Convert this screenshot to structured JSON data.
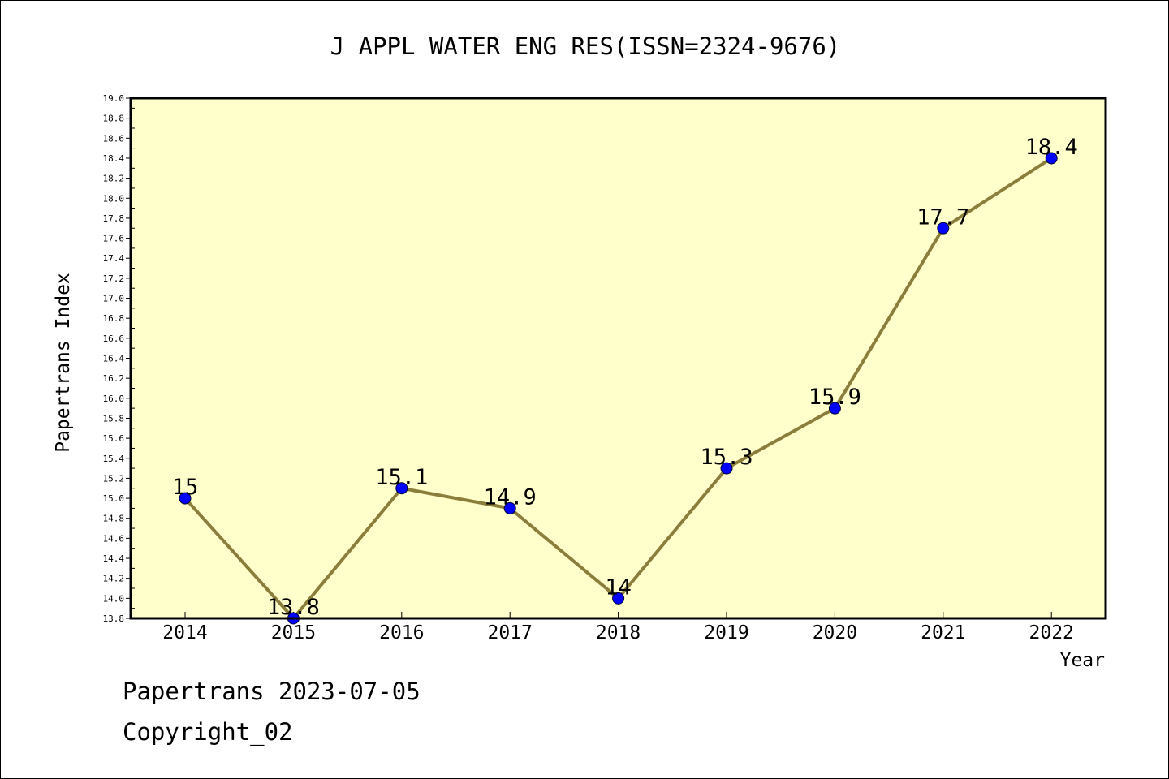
{
  "chart_data": {
    "type": "line",
    "title": "J APPL WATER ENG RES(ISSN=2324-9676)",
    "xlabel": "Year",
    "ylabel": "Papertrans Index",
    "categories": [
      "2014",
      "2015",
      "2016",
      "2017",
      "2018",
      "2019",
      "2020",
      "2021",
      "2022"
    ],
    "series": [
      {
        "values": [
          15,
          13.8,
          15.1,
          14.9,
          14,
          15.3,
          15.9,
          17.7,
          18.4
        ],
        "labels": [
          "15",
          "13.8",
          "15.1",
          "14.9",
          "14",
          "15.3",
          "15.9",
          "17.7",
          "18.4"
        ]
      }
    ],
    "ylim": [
      13.8,
      19.0
    ],
    "yticks": [
      "13.8",
      "14.0",
      "14.2",
      "14.4",
      "14.6",
      "14.8",
      "15.0",
      "15.2",
      "15.4",
      "15.6",
      "15.8",
      "16.0",
      "16.2",
      "16.4",
      "16.6",
      "16.8",
      "17.0",
      "17.2",
      "17.4",
      "17.6",
      "17.8",
      "18.0",
      "18.2",
      "18.4",
      "18.6",
      "18.8",
      "19.0"
    ],
    "grid": false,
    "legend": "none",
    "colors": {
      "plot_background": "#ffffcc",
      "line": "#8b7d3a",
      "marker": "#0000ff"
    }
  },
  "footer": {
    "date_line": "Papertrans 2023-07-05",
    "copyright": "Copyright_02"
  }
}
